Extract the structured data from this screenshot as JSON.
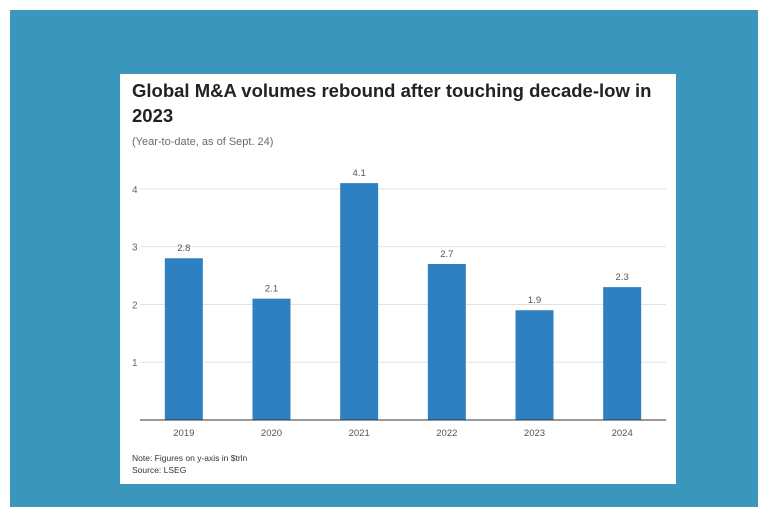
{
  "chart_data": {
    "type": "bar",
    "title": "Global M&A volumes rebound after touching decade-low in 2023",
    "subtitle": "(Year-to-date, as of Sept. 24)",
    "categories": [
      "2019",
      "2020",
      "2021",
      "2022",
      "2023",
      "2024"
    ],
    "values": [
      2.8,
      2.1,
      4.1,
      2.7,
      1.9,
      2.3
    ],
    "value_labels": [
      "2.8",
      "2.1",
      "4.1",
      "2.7",
      "1.9",
      "2.3"
    ],
    "yticks": [
      1,
      2,
      3,
      4
    ],
    "ylim": [
      0,
      4.5
    ],
    "grid": true,
    "bar_color": "#2f80c1",
    "note": "Note: Figures on y-axis in $trln",
    "source": "Source: LSEG"
  },
  "colors": {
    "frame": "#3a96bd",
    "card": "#ffffff"
  }
}
